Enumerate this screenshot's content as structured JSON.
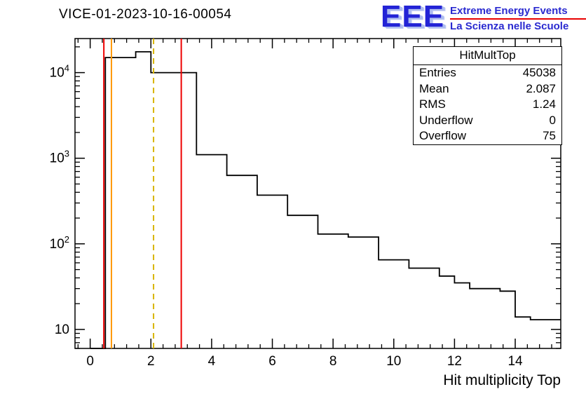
{
  "title": "VICE-01-2023-10-16-00054",
  "logo": {
    "eee": "EEE",
    "line1": "Extreme Energy Events",
    "line2": "La Scienza nelle Scuole",
    "blue": "#2a2ad0",
    "red": "#e80000"
  },
  "stats": {
    "title": "HitMultTop",
    "rows": [
      {
        "label": "Entries",
        "value": "45038"
      },
      {
        "label": "Mean",
        "value": "2.087"
      },
      {
        "label": "RMS",
        "value": "1.24"
      },
      {
        "label": "Underflow",
        "value": "0"
      },
      {
        "label": "Overflow",
        "value": "75"
      }
    ]
  },
  "chart_data": {
    "type": "bar",
    "subtype": "step-histogram",
    "title": "VICE-01-2023-10-16-00054",
    "xlabel": "Hit multiplicity Top",
    "ylabel": "",
    "y_scale": "log",
    "x_range": [
      -0.5,
      15.5
    ],
    "y_range": [
      6,
      25000
    ],
    "x_ticks_labeled": [
      0,
      2,
      4,
      6,
      8,
      10,
      12,
      14
    ],
    "y_ticks_labeled": [
      10,
      100,
      1000,
      10000
    ],
    "grid": false,
    "legend": false,
    "bin_start": 0,
    "bin_width": 0.5,
    "counts": [
      0,
      15000,
      15000,
      17500,
      10000,
      10000,
      10000,
      1100,
      1100,
      630,
      630,
      370,
      370,
      215,
      215,
      130,
      130,
      120,
      120,
      65,
      65,
      52,
      52,
      42,
      35,
      30,
      30,
      28,
      14,
      13,
      13
    ],
    "line_color": "#000000",
    "markers": [
      {
        "name": "red-cut-line-low",
        "x": 0.45,
        "color": "#ee0000",
        "style": "solid"
      },
      {
        "name": "orange-line",
        "x": 0.7,
        "color": "#ff9900",
        "style": "solid"
      },
      {
        "name": "mean-dashed-line",
        "x": 2.087,
        "color": "#d8b400",
        "style": "dashed"
      },
      {
        "name": "red-cut-line-high",
        "x": 3.0,
        "color": "#ee0000",
        "style": "solid"
      }
    ]
  }
}
